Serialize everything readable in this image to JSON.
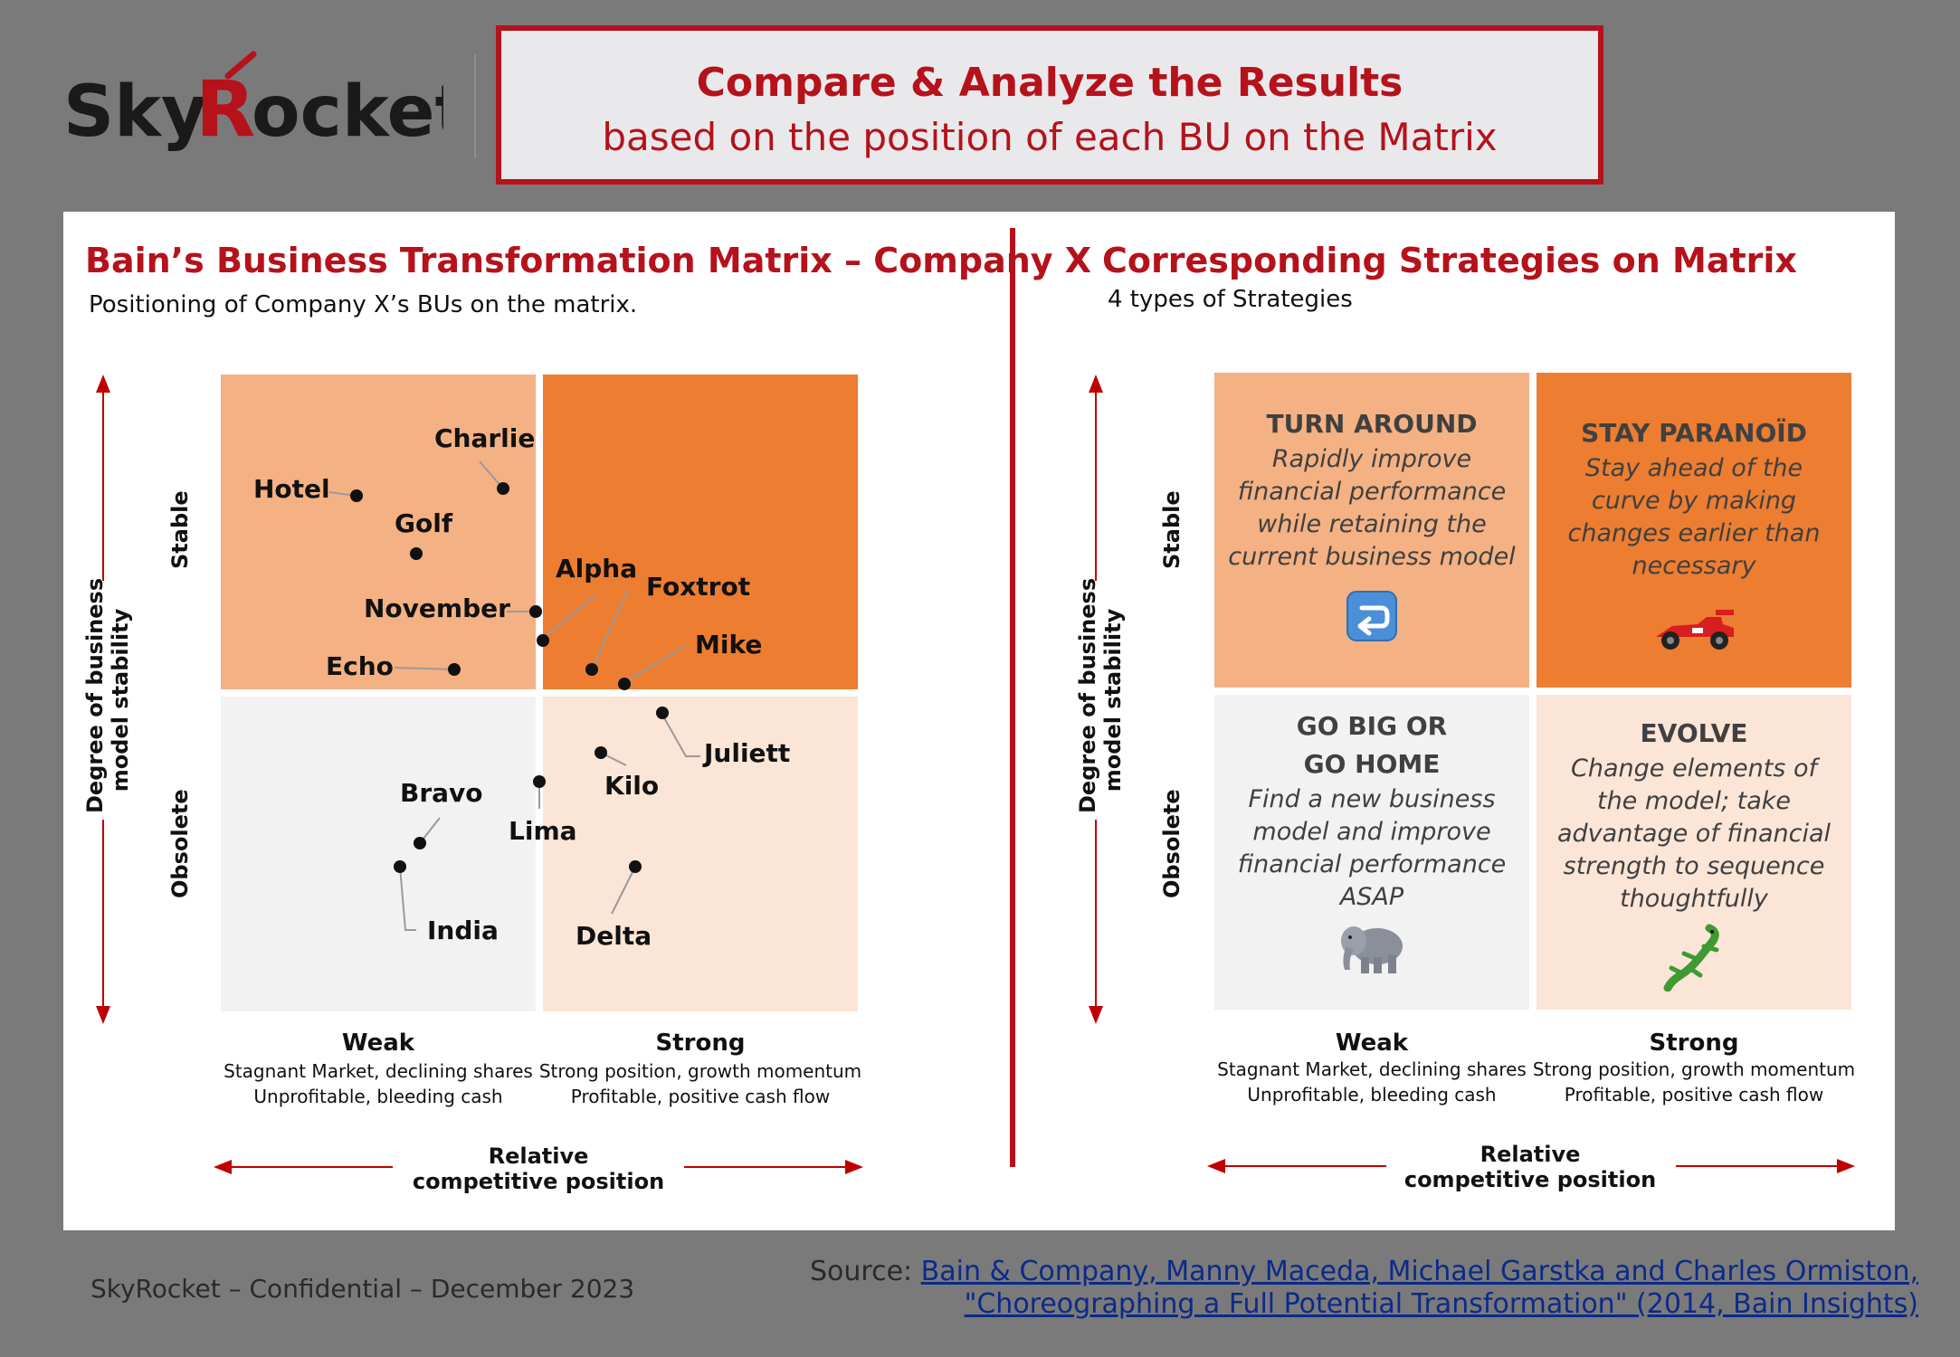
{
  "header": {
    "logo_text_a": "Sky",
    "logo_text_b": "R",
    "logo_text_c": "ocket",
    "title_line1": "Compare & Analyze the Results",
    "title_line2": "based on the position of each BU on the Matrix"
  },
  "left": {
    "title": "Bain’s Business Transformation Matrix – Company X",
    "subtitle": "Positioning of Company X’s BUs on the matrix.",
    "y_axis_label_1": "Degree of business",
    "y_axis_label_2": "model stability",
    "y_top": "Stable",
    "y_bottom": "Obsolete",
    "x_weak": "Weak",
    "x_weak_desc1": "Stagnant Market, declining shares",
    "x_weak_desc2": "Unprofitable, bleeding cash",
    "x_strong": "Strong",
    "x_strong_desc1": "Strong position, growth momentum",
    "x_strong_desc2": "Profitable, positive cash flow",
    "x_title_1": "Relative",
    "x_title_2": "competitive position",
    "units": [
      {
        "name": "Charlie"
      },
      {
        "name": "Hotel"
      },
      {
        "name": "Golf"
      },
      {
        "name": "Alpha"
      },
      {
        "name": "Foxtrot"
      },
      {
        "name": "November"
      },
      {
        "name": "Mike"
      },
      {
        "name": "Echo"
      },
      {
        "name": "Juliett"
      },
      {
        "name": "Kilo"
      },
      {
        "name": "Bravo"
      },
      {
        "name": "Lima"
      },
      {
        "name": "India"
      },
      {
        "name": "Delta"
      }
    ]
  },
  "right": {
    "title": "Corresponding Strategies on Matrix",
    "subtitle": "4 types of Strategies",
    "y_axis_label_1": "Degree of business",
    "y_axis_label_2": "model stability",
    "y_top": "Stable",
    "y_bottom": "Obsolete",
    "x_weak": "Weak",
    "x_weak_desc1": "Stagnant Market, declining shares",
    "x_weak_desc2": "Unprofitable, bleeding cash",
    "x_strong": "Strong",
    "x_strong_desc1": "Strong position, growth momentum",
    "x_strong_desc2": "Profitable, positive cash flow",
    "x_title_1": "Relative",
    "x_title_2": "competitive position",
    "strategies": {
      "turn_around": {
        "title": "TURN AROUND",
        "desc": "Rapidly improve financial performance while retaining the current business model",
        "icon": "return-arrow-icon"
      },
      "stay_paranoid": {
        "title": "STAY PARANOÏD",
        "desc": "Stay ahead of the curve by making changes earlier than necessary",
        "icon": "race-car-icon"
      },
      "go_big": {
        "title_1": "GO BIG OR",
        "title_2": "GO HOME",
        "desc": "Find a new business model and improve financial performance ASAP",
        "icon": "elephant-icon"
      },
      "evolve": {
        "title": "EVOLVE",
        "desc": "Change elements of the model; take advantage of financial strength to sequence thoughtfully",
        "icon": "lizard-icon"
      }
    }
  },
  "footer": {
    "confidential": "SkyRocket – Confidential – December 2023",
    "source_prefix": "Source: ",
    "source_line1": "Bain & Company, Manny Maceda, Michael Garstka and Charles Ormiston,",
    "source_line2": "\"Choreographing a Full Potential Transformation\" (2014, Bain Insights)"
  },
  "colors": {
    "brand_red": "#b5121b",
    "weak_stable": "#f4b183",
    "strong_stable": "#ed7d31",
    "weak_obsolete": "#f2f2f2",
    "strong_obsolete": "#fbe5d6"
  }
}
